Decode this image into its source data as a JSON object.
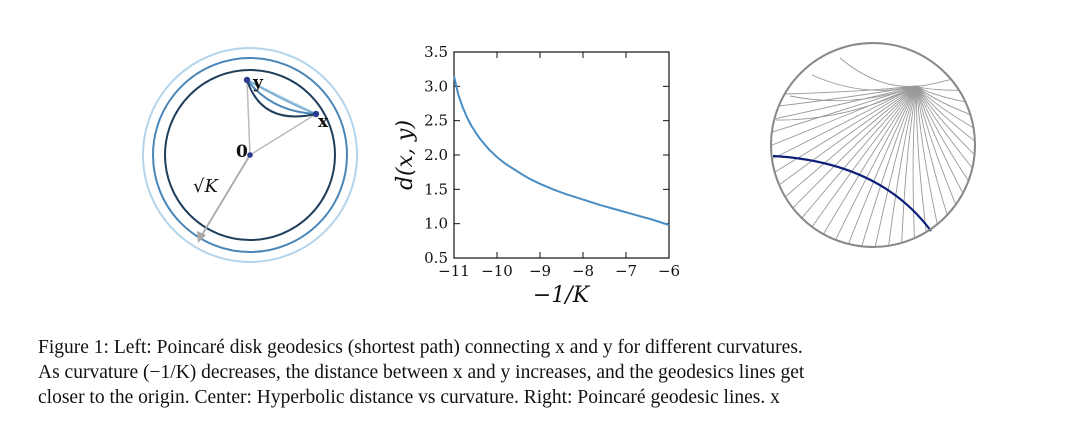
{
  "left_panel": {
    "label_x": "x",
    "label_y": "y",
    "label_origin": "0",
    "label_sqrtk": "√K"
  },
  "chart_data": {
    "type": "line",
    "xlabel": "−1/K",
    "ylabel": "d(x, y)",
    "xlim": [
      -11,
      -6
    ],
    "ylim": [
      0.5,
      3.5
    ],
    "xticks": [
      -11,
      -10,
      -9,
      -8,
      -7,
      -6
    ],
    "xtick_labels": [
      "−11",
      "−10",
      "−9",
      "−8",
      "−7",
      "−6"
    ],
    "yticks": [
      0.5,
      1.0,
      1.5,
      2.0,
      2.5,
      3.0,
      3.5
    ],
    "ytick_labels": [
      "0.5",
      "1.0",
      "1.5",
      "2.0",
      "2.5",
      "3.0",
      "3.5"
    ],
    "grid": false,
    "series": [
      {
        "color": "#4a8ec4",
        "x": [
          -11,
          -10.9,
          -10.8,
          -10.7,
          -10.6,
          -10.5,
          -10.4,
          -10.2,
          -10.0,
          -9.8,
          -9.6,
          -9.4,
          -9.2,
          -9.0,
          -8.7,
          -8.4,
          -8.0,
          -7.6,
          -7.2,
          -6.8,
          -6.4,
          -6.0
        ],
        "y": [
          3.15,
          2.88,
          2.7,
          2.55,
          2.43,
          2.33,
          2.24,
          2.09,
          1.97,
          1.87,
          1.79,
          1.71,
          1.64,
          1.58,
          1.5,
          1.43,
          1.35,
          1.27,
          1.2,
          1.13,
          1.06,
          0.98
        ]
      }
    ]
  },
  "caption": {
    "line1": "Figure 1: Left: Poincaré disk geodesics (shortest path) connecting x and y for different curvatures.",
    "line2": "As curvature (−1/K) decreases, the distance between x and y increases, and the geodesics lines get",
    "line3": "closer to the origin. Center: Hyperbolic distance vs curvature. Right: Poincaré geodesic lines. x"
  },
  "colors": {
    "outer_circle": "#b3d4ea",
    "middle_circle": "#4a86b8",
    "inner_circle": "#1f3f5c",
    "arrow": "#aaaaaa",
    "curve": "#4a8ec4",
    "geodesic_highlight": "#0f1f78",
    "geodesic_gray": "#999999",
    "disk_border": "#888888"
  }
}
